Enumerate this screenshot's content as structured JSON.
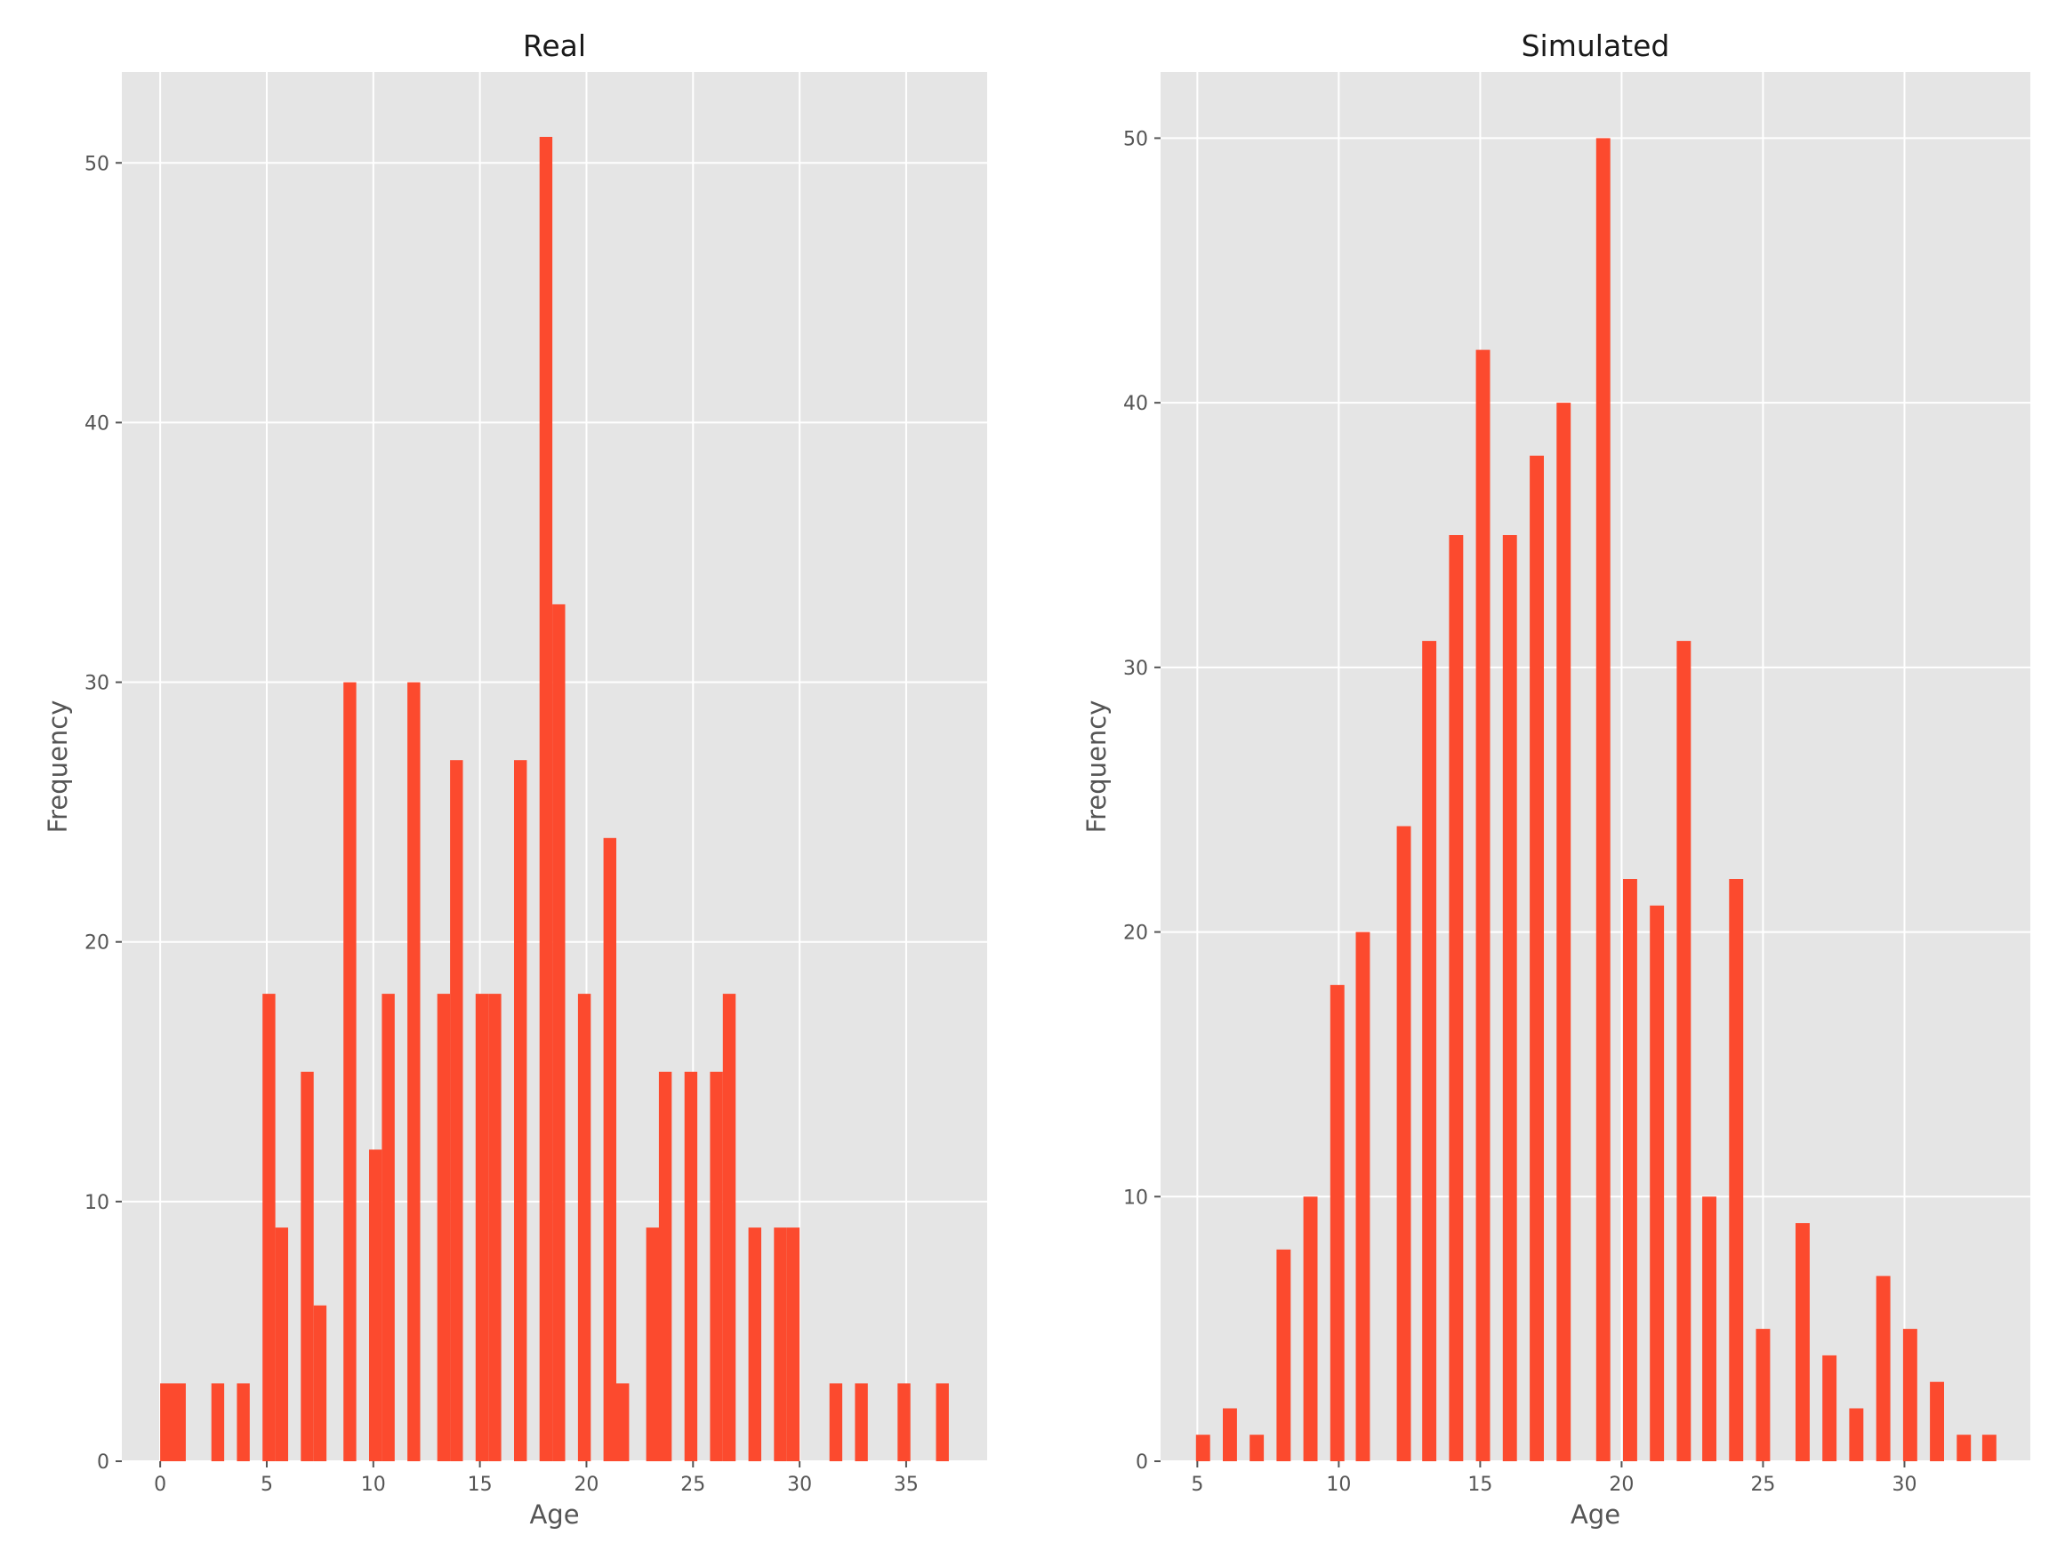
{
  "chart_data": [
    {
      "type": "bar",
      "title": "Real",
      "xlabel": "Age",
      "ylabel": "Frequency",
      "xlim": [
        -1.8,
        38.8
      ],
      "ylim": [
        0,
        53.5
      ],
      "xticks": [
        0,
        5,
        10,
        15,
        20,
        25,
        30,
        35
      ],
      "yticks": [
        0,
        10,
        20,
        30,
        40,
        50
      ],
      "bar_width": 0.6,
      "bar_color": "#fc4a2e",
      "grid": true,
      "bars": [
        {
          "x": 0.3,
          "value": 3
        },
        {
          "x": 0.9,
          "value": 3
        },
        {
          "x": 2.7,
          "value": 3
        },
        {
          "x": 3.9,
          "value": 3
        },
        {
          "x": 5.1,
          "value": 18
        },
        {
          "x": 5.7,
          "value": 9
        },
        {
          "x": 6.9,
          "value": 15
        },
        {
          "x": 7.5,
          "value": 6
        },
        {
          "x": 8.9,
          "value": 30
        },
        {
          "x": 10.1,
          "value": 12
        },
        {
          "x": 10.7,
          "value": 18
        },
        {
          "x": 11.9,
          "value": 30
        },
        {
          "x": 13.3,
          "value": 18
        },
        {
          "x": 13.9,
          "value": 27
        },
        {
          "x": 15.1,
          "value": 18
        },
        {
          "x": 15.7,
          "value": 18
        },
        {
          "x": 16.9,
          "value": 27
        },
        {
          "x": 18.1,
          "value": 51
        },
        {
          "x": 18.7,
          "value": 33
        },
        {
          "x": 19.9,
          "value": 18
        },
        {
          "x": 21.1,
          "value": 24
        },
        {
          "x": 21.7,
          "value": 3
        },
        {
          "x": 23.1,
          "value": 9
        },
        {
          "x": 23.7,
          "value": 15
        },
        {
          "x": 24.9,
          "value": 15
        },
        {
          "x": 26.1,
          "value": 15
        },
        {
          "x": 26.7,
          "value": 18
        },
        {
          "x": 27.9,
          "value": 9
        },
        {
          "x": 29.1,
          "value": 9
        },
        {
          "x": 29.7,
          "value": 9
        },
        {
          "x": 31.7,
          "value": 3
        },
        {
          "x": 32.9,
          "value": 3
        },
        {
          "x": 34.9,
          "value": 3
        },
        {
          "x": 36.7,
          "value": 3
        }
      ]
    },
    {
      "type": "bar",
      "title": "Simulated",
      "xlabel": "Age",
      "ylabel": "Frequency",
      "xlim": [
        3.7,
        34.45
      ],
      "ylim": [
        0,
        52.5
      ],
      "xticks": [
        5,
        10,
        15,
        20,
        25,
        30
      ],
      "yticks": [
        0,
        10,
        20,
        30,
        40,
        50
      ],
      "bar_width": 0.5,
      "bar_color": "#fc4a2e",
      "grid": true,
      "bars": [
        {
          "x": 5.2,
          "value": 1
        },
        {
          "x": 6.15,
          "value": 2
        },
        {
          "x": 7.1,
          "value": 1
        },
        {
          "x": 8.05,
          "value": 8
        },
        {
          "x": 9.0,
          "value": 10
        },
        {
          "x": 9.95,
          "value": 18
        },
        {
          "x": 10.85,
          "value": 20
        },
        {
          "x": 12.3,
          "value": 24
        },
        {
          "x": 13.2,
          "value": 31
        },
        {
          "x": 14.15,
          "value": 35
        },
        {
          "x": 15.1,
          "value": 42
        },
        {
          "x": 16.05,
          "value": 35
        },
        {
          "x": 17.0,
          "value": 38
        },
        {
          "x": 17.95,
          "value": 40
        },
        {
          "x": 19.35,
          "value": 50
        },
        {
          "x": 20.3,
          "value": 22
        },
        {
          "x": 21.25,
          "value": 21
        },
        {
          "x": 22.2,
          "value": 31
        },
        {
          "x": 23.1,
          "value": 10
        },
        {
          "x": 24.05,
          "value": 22
        },
        {
          "x": 25.0,
          "value": 5
        },
        {
          "x": 26.4,
          "value": 9
        },
        {
          "x": 27.35,
          "value": 4
        },
        {
          "x": 28.3,
          "value": 2
        },
        {
          "x": 29.25,
          "value": 7
        },
        {
          "x": 30.2,
          "value": 5
        },
        {
          "x": 31.15,
          "value": 3
        },
        {
          "x": 32.1,
          "value": 1
        },
        {
          "x": 33.0,
          "value": 1
        }
      ]
    }
  ]
}
